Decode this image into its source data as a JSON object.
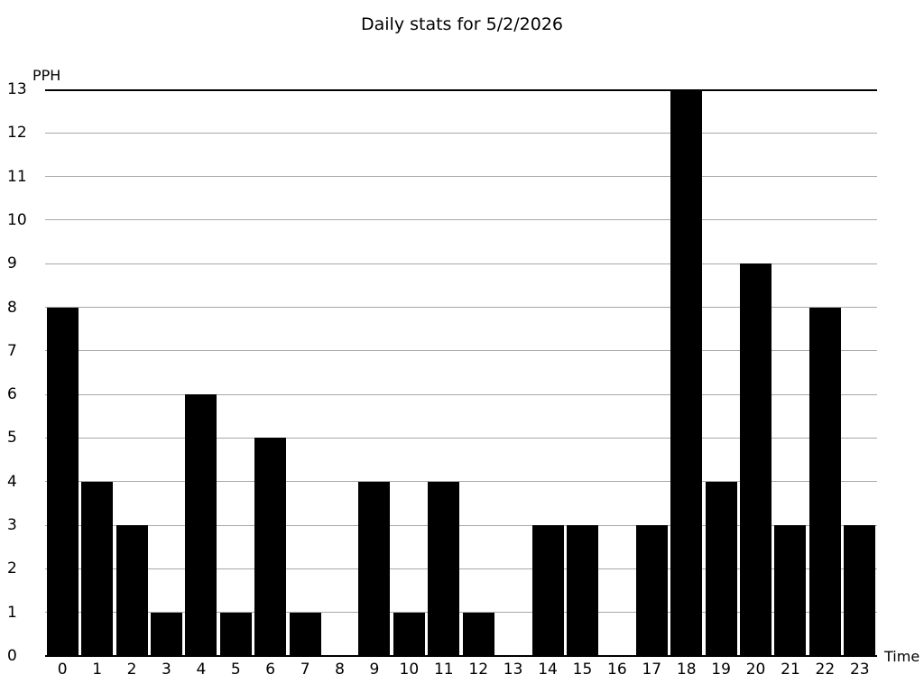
{
  "chart_data": {
    "type": "bar",
    "title": "Daily stats for 5/2/2026",
    "xlabel": "Time",
    "ylabel": "PPH",
    "categories": [
      "0",
      "1",
      "2",
      "3",
      "4",
      "5",
      "6",
      "7",
      "8",
      "9",
      "10",
      "11",
      "12",
      "13",
      "14",
      "15",
      "16",
      "17",
      "18",
      "19",
      "20",
      "21",
      "22",
      "23"
    ],
    "values": [
      8,
      4,
      3,
      1,
      6,
      1,
      5,
      1,
      0,
      4,
      1,
      4,
      1,
      0,
      3,
      3,
      0,
      3,
      13,
      4,
      9,
      3,
      8,
      3
    ],
    "ylim": [
      0,
      13
    ],
    "ytick_step": 1,
    "grid": true,
    "legend": "none",
    "bar_color": "#000000",
    "grid_color": "#a8a8a8",
    "axis_color": "#000000",
    "text_color": "#000000",
    "background_color": "#ffffff"
  }
}
